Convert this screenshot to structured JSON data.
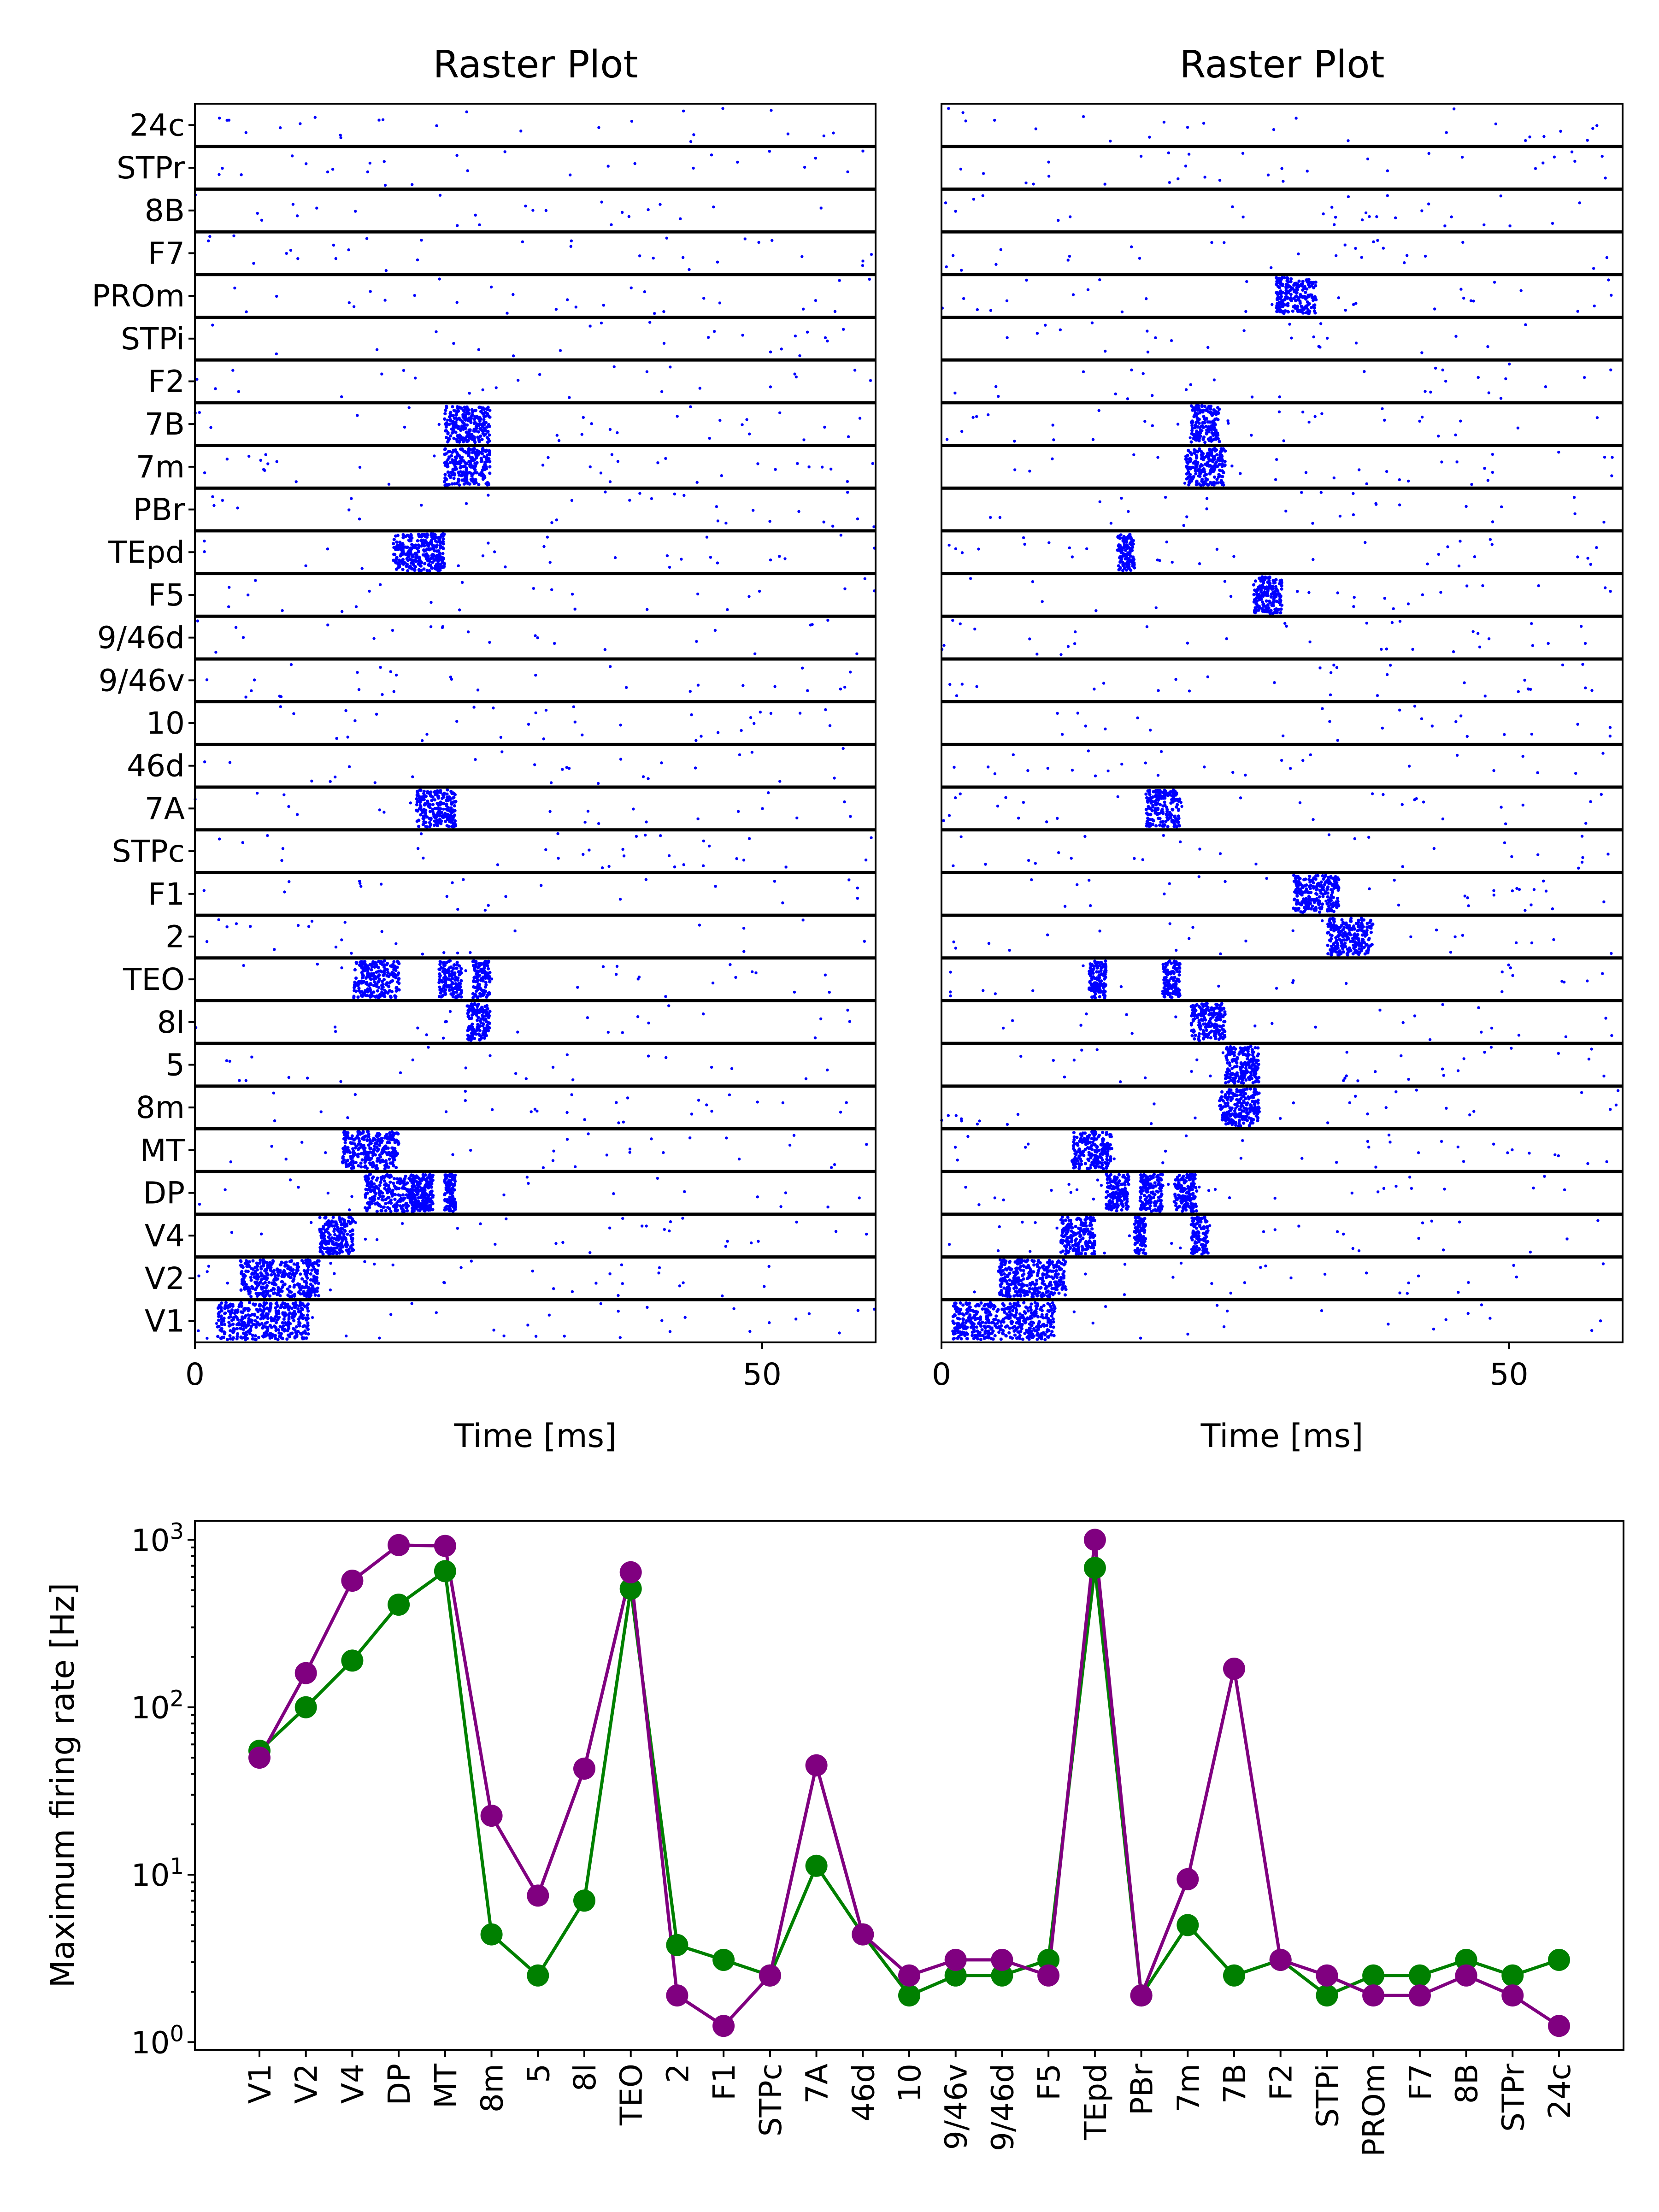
{
  "chart_data": [
    {
      "type": "scatter",
      "title": "Raster Plot",
      "xlabel": "Time [ms]",
      "xlim": [
        0,
        60
      ],
      "xticks": [
        "0",
        "50"
      ],
      "areas_top_to_bottom": [
        "24c",
        "STPr",
        "8B",
        "F7",
        "PROm",
        "STPi",
        "F2",
        "7B",
        "7m",
        "PBr",
        "TEpd",
        "F5",
        "9/46d",
        "9/46v",
        "10",
        "46d",
        "7A",
        "STPc",
        "F1",
        "2",
        "TEO",
        "8l",
        "5",
        "8m",
        "MT",
        "DP",
        "V4",
        "V2",
        "V1"
      ],
      "marker_color": "#0000ff",
      "bursts_ms": {
        "V1": [
          [
            2,
            10
          ]
        ],
        "V2": [
          [
            4,
            11
          ]
        ],
        "V4": [
          [
            11,
            14
          ]
        ],
        "DP": [
          [
            15,
            21
          ],
          [
            19,
            21
          ],
          [
            22,
            23
          ]
        ],
        "MT": [
          [
            13,
            18
          ]
        ],
        "TEO": [
          [
            14,
            18
          ],
          [
            21.5,
            23.5
          ],
          [
            24.5,
            26
          ]
        ],
        "7A": [
          [
            19.5,
            23
          ]
        ],
        "TEpd": [
          [
            17.5,
            20.5
          ],
          [
            20.5,
            22
          ]
        ],
        "8l": [
          [
            24,
            26
          ]
        ],
        "7B": [
          [
            22,
            26
          ]
        ],
        "7m": [
          [
            22,
            26
          ]
        ]
      }
    },
    {
      "type": "scatter",
      "title": "Raster Plot",
      "xlabel": "Time [ms]",
      "xlim": [
        0,
        60
      ],
      "xticks": [
        "0",
        "50"
      ],
      "areas_top_to_bottom": [
        "24c",
        "STPr",
        "8B",
        "F7",
        "PROm",
        "STPi",
        "F2",
        "7B",
        "7m",
        "PBr",
        "TEpd",
        "F5",
        "9/46d",
        "9/46v",
        "10",
        "46d",
        "7A",
        "STPc",
        "F1",
        "2",
        "TEO",
        "8l",
        "5",
        "8m",
        "MT",
        "DP",
        "V4",
        "V2",
        "V1"
      ],
      "marker_color": "#0000ff",
      "bursts_ms": {
        "V1": [
          [
            1,
            10
          ]
        ],
        "V2": [
          [
            5,
            11
          ]
        ],
        "V4": [
          [
            10.5,
            13.5
          ],
          [
            17,
            18
          ],
          [
            22,
            23.5
          ]
        ],
        "DP": [
          [
            14.5,
            16.5
          ],
          [
            17.5,
            19.5
          ],
          [
            20.5,
            22.5
          ]
        ],
        "MT": [
          [
            11.5,
            15
          ]
        ],
        "TEO": [
          [
            13,
            14.5
          ],
          [
            19.5,
            21
          ]
        ],
        "8m": [
          [
            24.5,
            28
          ]
        ],
        "5": [
          [
            25,
            28
          ]
        ],
        "8l": [
          [
            22,
            25
          ]
        ],
        "2": [
          [
            34,
            38
          ]
        ],
        "F1": [
          [
            31,
            35
          ]
        ],
        "7A": [
          [
            18,
            21
          ]
        ],
        "F5": [
          [
            27.5,
            30
          ]
        ],
        "TEpd": [
          [
            15.5,
            17
          ]
        ],
        "7m": [
          [
            21.5,
            25
          ]
        ],
        "7B": [
          [
            22,
            24.5
          ]
        ],
        "PROm": [
          [
            29.5,
            33
          ]
        ]
      }
    },
    {
      "type": "line",
      "title": "",
      "xlabel": "",
      "ylabel": "Maximum firing rate [Hz]",
      "yscale": "log",
      "ylim": [
        0.9,
        1300
      ],
      "yticks": [
        {
          "base": "10",
          "exp": "0"
        },
        {
          "base": "10",
          "exp": "1"
        },
        {
          "base": "10",
          "exp": "2"
        },
        {
          "base": "10",
          "exp": "3"
        }
      ],
      "categories": [
        "V1",
        "V2",
        "V4",
        "DP",
        "MT",
        "8m",
        "5",
        "8l",
        "TEO",
        "2",
        "F1",
        "STPc",
        "7A",
        "46d",
        "10",
        "9/46v",
        "9/46d",
        "F5",
        "TEpd",
        "PBr",
        "7m",
        "7B",
        "F2",
        "STPi",
        "PROm",
        "F7",
        "8B",
        "STPr",
        "24c"
      ],
      "series": [
        {
          "color": "#008000",
          "values": [
            55,
            100,
            190,
            410,
            650,
            4.4,
            2.5,
            7,
            510,
            3.8,
            3.1,
            2.5,
            11.3,
            4.4,
            1.9,
            2.5,
            2.5,
            3.1,
            680,
            1.9,
            5,
            2.5,
            3.1,
            1.9,
            2.5,
            2.5,
            3.1,
            2.5,
            3.1
          ]
        },
        {
          "color": "#800080",
          "values": [
            50,
            160,
            570,
            930,
            920,
            22.5,
            7.5,
            43,
            640,
            1.9,
            1.25,
            2.5,
            45,
            4.4,
            2.5,
            3.1,
            3.1,
            2.5,
            1000,
            1.9,
            9.4,
            170,
            3.1,
            2.5,
            1.9,
            1.9,
            2.5,
            1.9,
            1.25
          ]
        }
      ]
    }
  ]
}
